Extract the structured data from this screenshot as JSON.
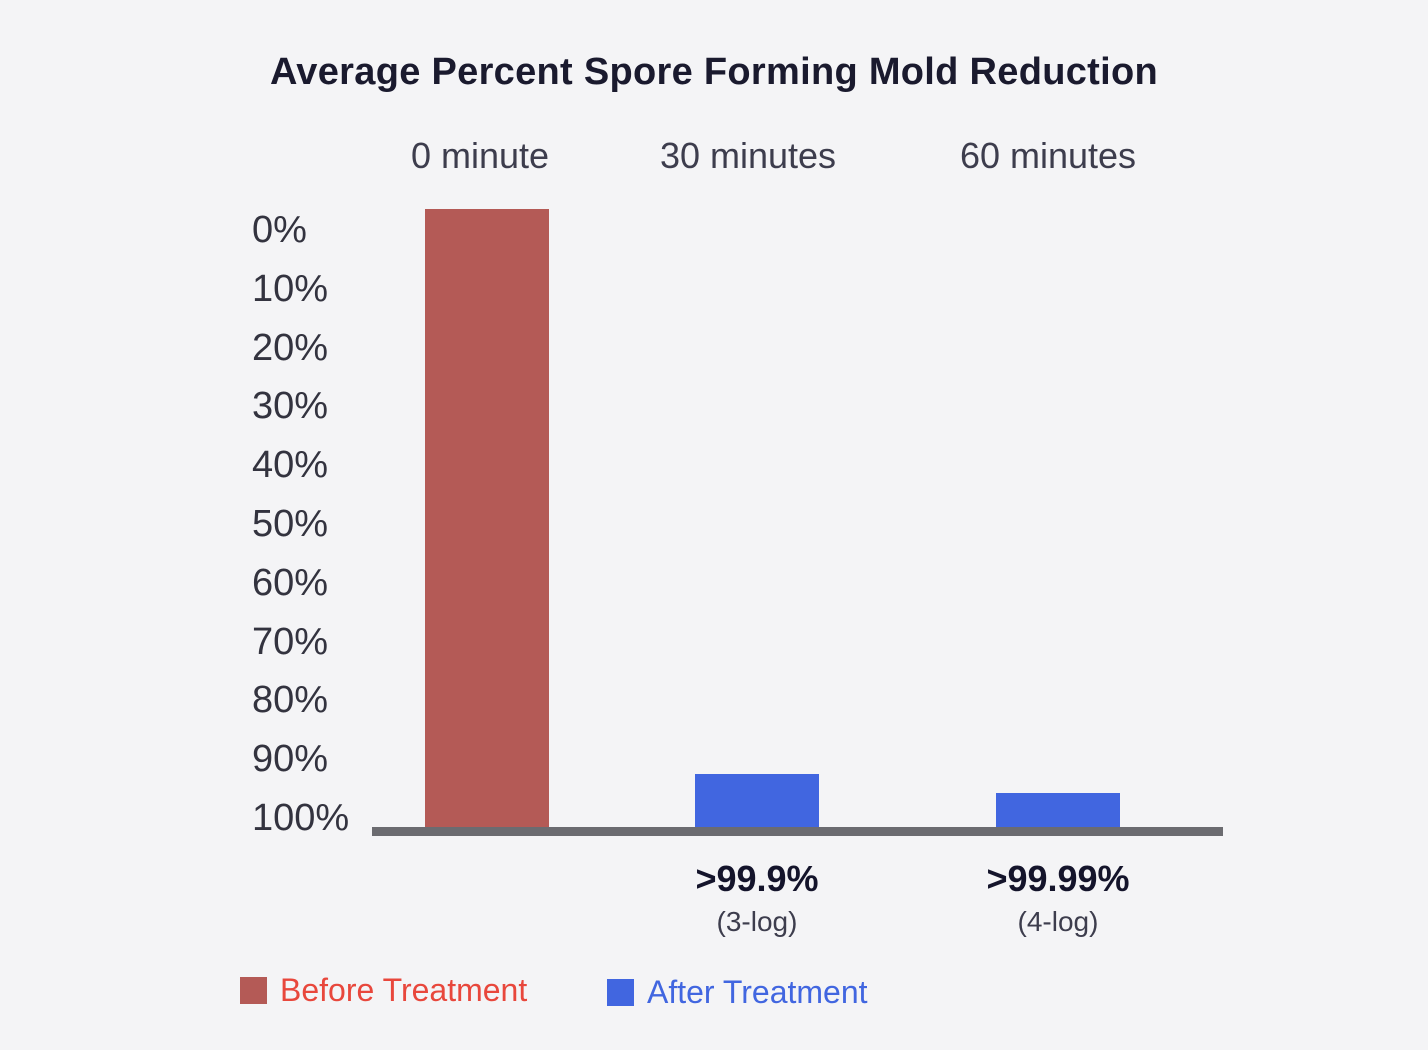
{
  "chart_data": {
    "type": "bar",
    "title": "Average Percent Spore Forming Mold Reduction",
    "categories": [
      "0 minute",
      "30 minutes",
      "60 minutes"
    ],
    "y_axis": {
      "ticks": [
        "0%",
        "10%",
        "20%",
        "30%",
        "40%",
        "50%",
        "60%",
        "70%",
        "80%",
        "90%",
        "100%"
      ],
      "inverted": true,
      "range": [
        0,
        100
      ]
    },
    "bars": [
      {
        "category": "0 minute",
        "series": "Before Treatment",
        "from_percent": 0,
        "to_percent": 100,
        "color": "#b45a56",
        "label": "",
        "sublabel": ""
      },
      {
        "category": "30 minutes",
        "series": "After Treatment",
        "from_percent": 91.5,
        "to_percent": 100,
        "color": "#4166e0",
        "label": ">99.9%",
        "sublabel": "(3-log)"
      },
      {
        "category": "60 minutes",
        "series": "After Treatment",
        "from_percent": 94.5,
        "to_percent": 100,
        "color": "#4166e0",
        "label": ">99.99%",
        "sublabel": "(4-log)"
      }
    ],
    "legend": [
      {
        "label": "Before Treatment",
        "swatch_color": "#b45a56",
        "text_color": "#e8473c"
      },
      {
        "label": "After Treatment",
        "swatch_color": "#4166e0",
        "text_color": "#4166e0"
      }
    ],
    "colors": {
      "background": "#f4f4f6",
      "baseline": "#6b6b70",
      "title_text": "#1a1a2e",
      "axis_text": "#33333f",
      "annotation_text": "#14142b"
    },
    "legend_position": "bottom-left"
  }
}
